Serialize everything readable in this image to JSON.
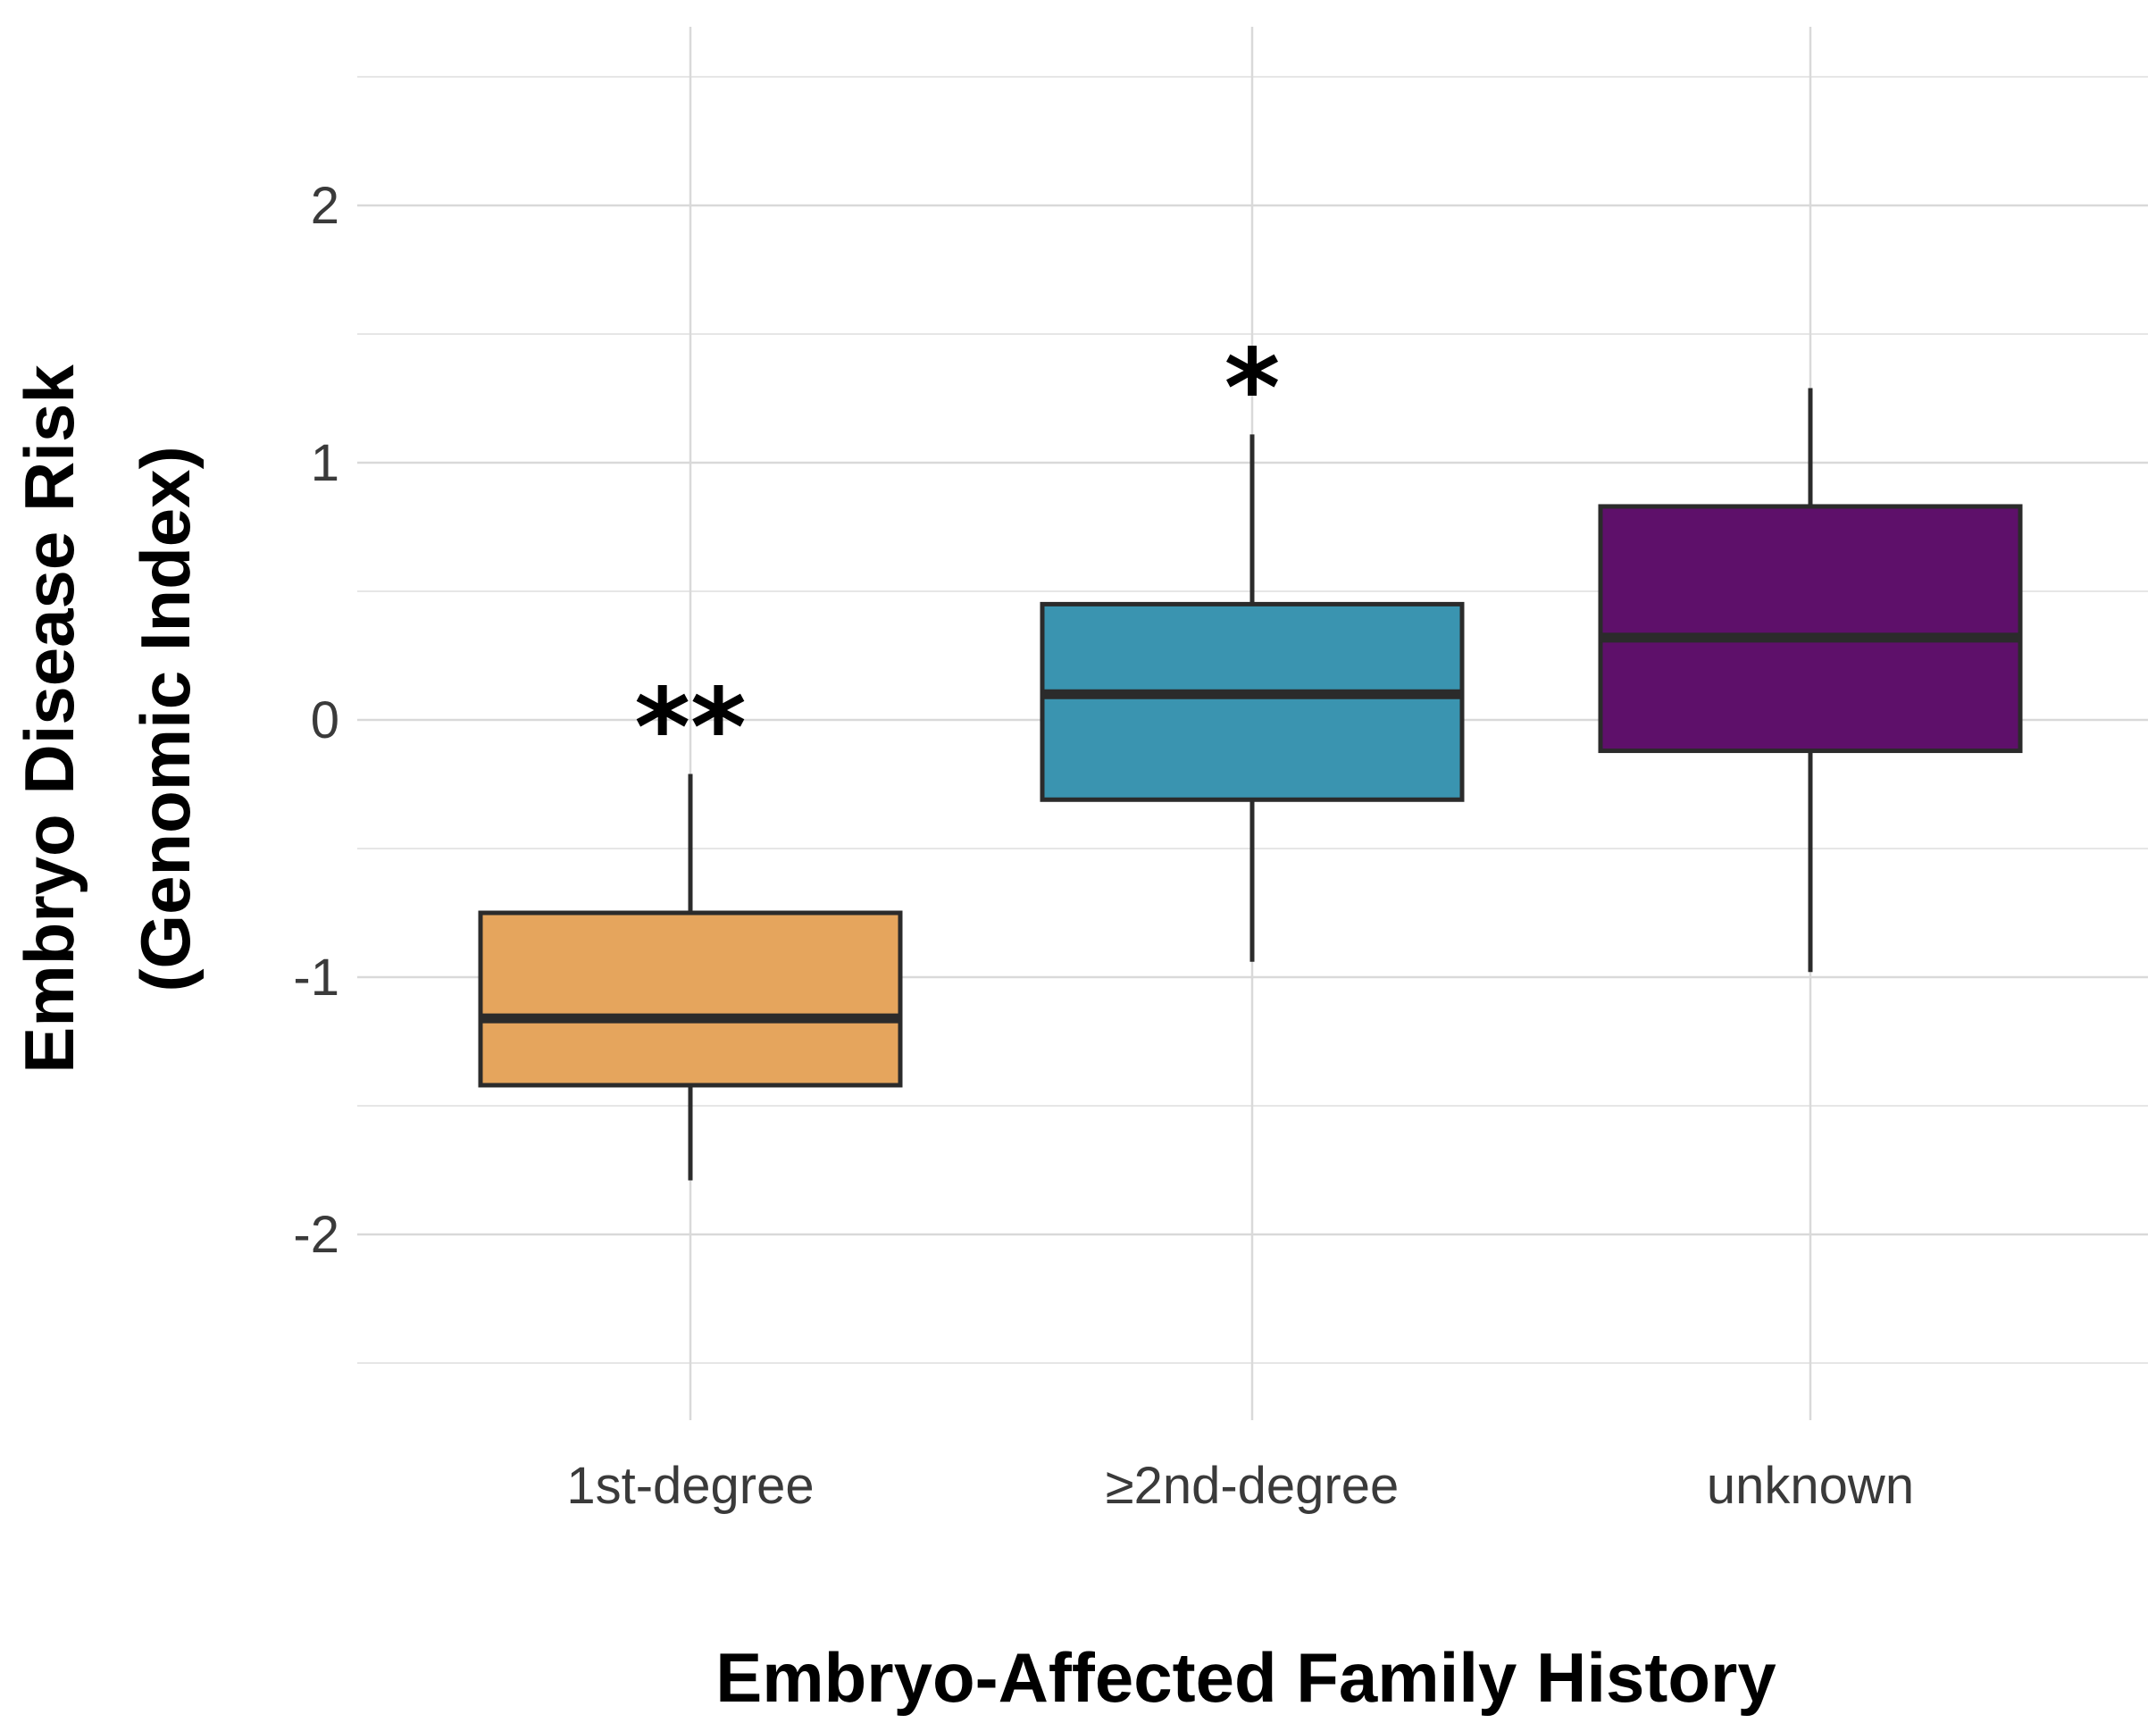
{
  "chart_data": {
    "type": "boxplot",
    "title": "",
    "xlabel": "Embryo-Affected Family History",
    "ylabel_line1": "Embryo Disease Risk",
    "ylabel_line2": "(Genomic Index)",
    "ylim": [
      -2.5,
      2.5
    ],
    "yticks": [
      {
        "value": -2,
        "label": "-2"
      },
      {
        "value": -1,
        "label": "-1"
      },
      {
        "value": 0,
        "label": "0"
      },
      {
        "value": 1,
        "label": "1"
      },
      {
        "value": 2,
        "label": "2"
      }
    ],
    "grid": true,
    "categories": [
      {
        "label": "1st-degree",
        "color": "#E5A55D",
        "min": -1.79,
        "q1": -1.42,
        "median": -1.16,
        "q3": -0.75,
        "max": -0.21,
        "significance": "**"
      },
      {
        "label": "≥2nd-degree",
        "color": "#3A94B0",
        "min": -0.94,
        "q1": -0.31,
        "median": 0.1,
        "q3": 0.45,
        "max": 1.11,
        "significance": "*"
      },
      {
        "label": "unknown",
        "color": "#5E106A",
        "min": -0.98,
        "q1": -0.12,
        "median": 0.32,
        "q3": 0.83,
        "max": 1.29,
        "significance": ""
      }
    ]
  }
}
